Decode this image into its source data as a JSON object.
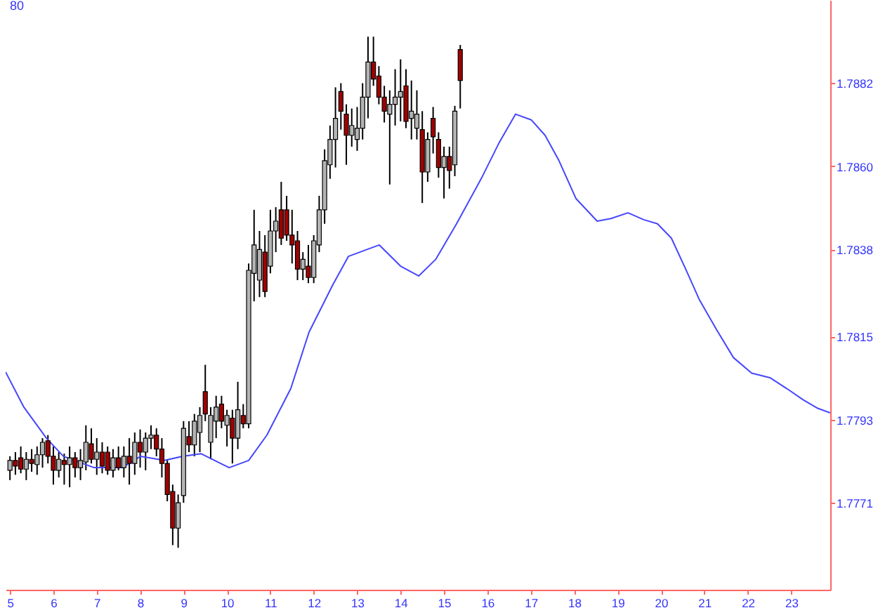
{
  "chart_data": {
    "type": "candlestick",
    "x": [
      5,
      5.125,
      5.25,
      5.375,
      5.5,
      5.625,
      5.75,
      5.875,
      6,
      6.125,
      6.25,
      6.375,
      6.5,
      6.625,
      6.75,
      6.875,
      7,
      7.125,
      7.25,
      7.375,
      7.5,
      7.625,
      7.75,
      7.875,
      8,
      8.125,
      8.25,
      8.375,
      8.5,
      8.625,
      8.75,
      8.875,
      9,
      9.125,
      9.25,
      9.375,
      9.5,
      9.625,
      9.75,
      9.875,
      10,
      10.125,
      10.25,
      10.375,
      10.5,
      10.625,
      10.75,
      10.875,
      11,
      11.125,
      11.25,
      11.375,
      11.5,
      11.625,
      11.75,
      11.875,
      12,
      12.125,
      12.25,
      12.375,
      12.5,
      12.625,
      12.75,
      12.875,
      13,
      13.125,
      13.25,
      13.375,
      13.5,
      13.625,
      13.75,
      13.875,
      14,
      14.125,
      14.25,
      14.375,
      14.5,
      14.625,
      14.75,
      14.875,
      15,
      15.125,
      15.25,
      15.375
    ],
    "ohlc": [
      [
        1.77796,
        1.77833,
        1.7777,
        1.77822
      ],
      [
        1.77822,
        1.77844,
        1.77784,
        1.77807
      ],
      [
        1.77829,
        1.77859,
        1.77788,
        1.77799
      ],
      [
        1.77799,
        1.77844,
        1.7777,
        1.77825
      ],
      [
        1.77825,
        1.77852,
        1.77792,
        1.77814
      ],
      [
        1.77811,
        1.77859,
        1.77784,
        1.77837
      ],
      [
        1.77837,
        1.77881,
        1.77803,
        1.7787
      ],
      [
        1.77874,
        1.77889,
        1.77814,
        1.77833
      ],
      [
        1.77833,
        1.77859,
        1.77758,
        1.77796
      ],
      [
        1.77796,
        1.77844,
        1.77777,
        1.77825
      ],
      [
        1.77822,
        1.7784,
        1.77758,
        1.77811
      ],
      [
        1.77811,
        1.77859,
        1.77751,
        1.77829
      ],
      [
        1.77829,
        1.77844,
        1.77777,
        1.77803
      ],
      [
        1.77803,
        1.77852,
        1.7777,
        1.77822
      ],
      [
        1.77818,
        1.77915,
        1.77796,
        1.7787
      ],
      [
        1.77866,
        1.77907,
        1.77814,
        1.77825
      ],
      [
        1.77825,
        1.77881,
        1.77784,
        1.77844
      ],
      [
        1.77844,
        1.7787,
        1.77788,
        1.77807
      ],
      [
        1.77844,
        1.77859,
        1.77784,
        1.77796
      ],
      [
        1.77796,
        1.77852,
        1.77777,
        1.77829
      ],
      [
        1.77829,
        1.77859,
        1.77796,
        1.77803
      ],
      [
        1.77803,
        1.77859,
        1.77777,
        1.77833
      ],
      [
        1.77833,
        1.77881,
        1.77758,
        1.77814
      ],
      [
        1.77814,
        1.77896,
        1.77784,
        1.7787
      ],
      [
        1.7787,
        1.77904,
        1.77803,
        1.77844
      ],
      [
        1.77844,
        1.77896,
        1.77796,
        1.77881
      ],
      [
        1.77881,
        1.77915,
        1.77852,
        1.77889
      ],
      [
        1.77889,
        1.77907,
        1.77833,
        1.77852
      ],
      [
        1.77852,
        1.77881,
        1.77777,
        1.77814
      ],
      [
        1.77814,
        1.77825,
        1.77714,
        1.77732
      ],
      [
        1.7774,
        1.77758,
        1.77598,
        1.77643
      ],
      [
        1.77643,
        1.77732,
        1.77591,
        1.7771
      ],
      [
        1.77729,
        1.77926,
        1.7771,
        1.77907
      ],
      [
        1.77885,
        1.77926,
        1.77844,
        1.77863
      ],
      [
        1.77863,
        1.77945,
        1.77833,
        1.77926
      ],
      [
        1.77896,
        1.77963,
        1.77844,
        1.77941
      ],
      [
        1.78004,
        1.78075,
        1.77926,
        1.77945
      ],
      [
        1.7787,
        1.77963,
        1.77825,
        1.77941
      ],
      [
        1.77926,
        1.77993,
        1.77881,
        1.77963
      ],
      [
        1.77971,
        1.77993,
        1.77907,
        1.77926
      ],
      [
        1.77915,
        1.77956,
        1.77859,
        1.77941
      ],
      [
        1.77934,
        1.77956,
        1.77814,
        1.77881
      ],
      [
        1.77881,
        1.7803,
        1.77852,
        1.77956
      ],
      [
        1.77941,
        1.77971,
        1.77907,
        1.77919
      ],
      [
        1.77919,
        1.78343,
        1.77907,
        1.78325
      ],
      [
        1.78317,
        1.78485,
        1.78243,
        1.78392
      ],
      [
        1.78299,
        1.78429,
        1.78254,
        1.7838
      ],
      [
        1.78373,
        1.78418,
        1.78254,
        1.78269
      ],
      [
        1.78336,
        1.78485,
        1.78317,
        1.78429
      ],
      [
        1.78429,
        1.78492,
        1.78373,
        1.78455
      ],
      [
        1.78485,
        1.78559,
        1.78392,
        1.7841
      ],
      [
        1.78485,
        1.78522,
        1.78403,
        1.78418
      ],
      [
        1.78418,
        1.78485,
        1.78343,
        1.78392
      ],
      [
        1.78403,
        1.78429,
        1.78299,
        1.78328
      ],
      [
        1.78328,
        1.78373,
        1.78299,
        1.78354
      ],
      [
        1.78336,
        1.78392,
        1.78291,
        1.78306
      ],
      [
        1.78306,
        1.78418,
        1.78291,
        1.78403
      ],
      [
        1.78392,
        1.78522,
        1.78373,
        1.78485
      ],
      [
        1.78485,
        1.78645,
        1.78448,
        1.78615
      ],
      [
        1.78604,
        1.78708,
        1.78567,
        1.78671
      ],
      [
        1.78671,
        1.78809,
        1.78597,
        1.78727
      ],
      [
        1.78798,
        1.7882,
        1.78697,
        1.78746
      ],
      [
        1.78738,
        1.78764,
        1.78604,
        1.78682
      ],
      [
        1.78682,
        1.78753,
        1.78652,
        1.78708
      ],
      [
        1.78671,
        1.78757,
        1.78641,
        1.78701
      ],
      [
        1.78701,
        1.7882,
        1.78671,
        1.78783
      ],
      [
        1.78783,
        1.78943,
        1.78727,
        1.78876
      ],
      [
        1.78876,
        1.78943,
        1.78813,
        1.78831
      ],
      [
        1.78839,
        1.78865,
        1.78764,
        1.78783
      ],
      [
        1.78783,
        1.78813,
        1.78716,
        1.78746
      ],
      [
        1.78738,
        1.78801,
        1.78552,
        1.78764
      ],
      [
        1.78764,
        1.78857,
        1.78708,
        1.78783
      ],
      [
        1.78783,
        1.78883,
        1.78719,
        1.78798
      ],
      [
        1.78813,
        1.78857,
        1.78701,
        1.78719
      ],
      [
        1.78727,
        1.78827,
        1.78671,
        1.78746
      ],
      [
        1.78701,
        1.78801,
        1.78671,
        1.78738
      ],
      [
        1.78697,
        1.78746,
        1.78503,
        1.78585
      ],
      [
        1.78585,
        1.7869,
        1.78559,
        1.78671
      ],
      [
        1.78727,
        1.78757,
        1.78634,
        1.78678
      ],
      [
        1.78671,
        1.7869,
        1.7857,
        1.78597
      ],
      [
        1.78597,
        1.78652,
        1.78515,
        1.78626
      ],
      [
        1.78626,
        1.78652,
        1.78541,
        1.78589
      ],
      [
        1.78604,
        1.7876,
        1.78574,
        1.78746
      ],
      [
        1.78909,
        1.78921,
        1.78753,
        1.78827
      ]
    ],
    "colors": [
      "#b4b4b4",
      "#a00000",
      "#a00000",
      "#b4b4b4",
      "#a00000",
      "#b4b4b4",
      "#b4b4b4",
      "#a00000",
      "#a00000",
      "#b4b4b4",
      "#a00000",
      "#b4b4b4",
      "#a00000",
      "#b4b4b4",
      "#b4b4b4",
      "#a00000",
      "#b4b4b4",
      "#a00000",
      "#a00000",
      "#b4b4b4",
      "#a00000",
      "#b4b4b4",
      "#a00000",
      "#b4b4b4",
      "#a00000",
      "#b4b4b4",
      "#b4b4b4",
      "#a00000",
      "#a00000",
      "#a00000",
      "#a00000",
      "#b4b4b4",
      "#b4b4b4",
      "#a00000",
      "#b4b4b4",
      "#b4b4b4",
      "#a00000",
      "#b4b4b4",
      "#b4b4b4",
      "#a00000",
      "#b4b4b4",
      "#a00000",
      "#b4b4b4",
      "#a00000",
      "#b4b4b4",
      "#b4b4b4",
      "#b4b4b4",
      "#a00000",
      "#b4b4b4",
      "#b4b4b4",
      "#a00000",
      "#a00000",
      "#a00000",
      "#a00000",
      "#b4b4b4",
      "#a00000",
      "#b4b4b4",
      "#b4b4b4",
      "#b4b4b4",
      "#b4b4b4",
      "#b4b4b4",
      "#a00000",
      "#a00000",
      "#b4b4b4",
      "#b4b4b4",
      "#b4b4b4",
      "#b4b4b4",
      "#a00000",
      "#a00000",
      "#a00000",
      "#b4b4b4",
      "#b4b4b4",
      "#b4b4b4",
      "#a00000",
      "#b4b4b4",
      "#b4b4b4",
      "#a00000",
      "#b4b4b4",
      "#a00000",
      "#a00000",
      "#b4b4b4",
      "#a00000",
      "#b4b4b4",
      "#a00000"
    ],
    "series": [
      {
        "type": "line",
        "color": "#4646ff",
        "x": [
          4.9,
          5.32,
          5.84,
          6.23,
          6.94,
          7.59,
          8.01,
          8.56,
          8.98,
          9.4,
          10.05,
          10.5,
          10.92,
          11.47,
          11.89,
          12.44,
          12.8,
          13.51,
          14.0,
          14.42,
          14.81,
          15.29,
          15.87,
          16.26,
          16.65,
          17.01,
          17.33,
          17.65,
          18.04,
          18.53,
          18.85,
          19.24,
          19.6,
          19.92,
          20.24,
          20.57,
          20.89,
          21.28,
          21.67,
          22.09,
          22.51,
          22.9,
          23.28,
          23.61,
          23.9
        ],
        "values": [
          1.78056,
          1.77963,
          1.77881,
          1.77833,
          1.77803,
          1.77803,
          1.77833,
          1.77822,
          1.77833,
          1.7784,
          1.77803,
          1.77822,
          1.77889,
          1.78012,
          1.78161,
          1.78287,
          1.78362,
          1.78392,
          1.78336,
          1.7831,
          1.78354,
          1.78448,
          1.7857,
          1.7866,
          1.78738,
          1.78723,
          1.78682,
          1.78615,
          1.78515,
          1.78455,
          1.78462,
          1.78477,
          1.78459,
          1.78448,
          1.7841,
          1.78328,
          1.78246,
          1.78168,
          1.78094,
          1.78053,
          1.78041,
          1.78012,
          1.77982,
          1.7796,
          1.77948
        ]
      }
    ],
    "xlim": [
      4.9,
      23.9
    ],
    "xticks": [
      5,
      6,
      7,
      8,
      9,
      10,
      11,
      12,
      13,
      14,
      15,
      16,
      17,
      18,
      19,
      20,
      21,
      22,
      23
    ],
    "ylim": [
      1.7748,
      1.7904
    ],
    "yticks": [
      1.7771,
      1.7793,
      1.7815,
      1.7838,
      {
        "value": 1.786,
        "label": "1.7860"
      },
      1.7882
    ],
    "annotations": [
      "80"
    ]
  }
}
